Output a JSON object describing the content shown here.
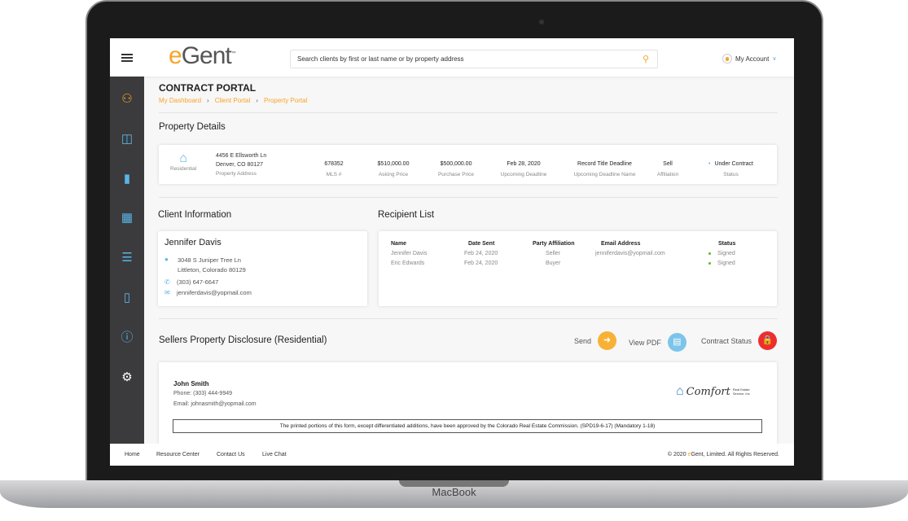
{
  "device": {
    "label": "MacBook"
  },
  "header": {
    "logo_e": "e",
    "logo_rest": "Gent",
    "logo_tm": "™",
    "search_placeholder": "Search clients by first or last name or by property address",
    "account_label": "My Account"
  },
  "sidebar": {
    "items": [
      {
        "icon": "people-icon"
      },
      {
        "icon": "chat-icon"
      },
      {
        "icon": "bar-chart-icon"
      },
      {
        "icon": "calendar-icon"
      },
      {
        "icon": "list-icon"
      },
      {
        "icon": "trash-icon"
      },
      {
        "icon": "help-icon"
      },
      {
        "icon": "gear-icon"
      }
    ]
  },
  "page": {
    "title": "CONTRACT PORTAL",
    "breadcrumb": [
      "My Dashboard",
      "Client Portal",
      "Property Portal"
    ]
  },
  "property": {
    "heading": "Property Details",
    "type": "Residential",
    "address1": "4456 E Ellsworth Ln",
    "address2": "Denver, CO 80127",
    "address_label": "Property Address",
    "fields": [
      {
        "value": "678352",
        "label": "MLS #"
      },
      {
        "value": "$510,000.00",
        "label": "Asking Price"
      },
      {
        "value": "$500,000.00",
        "label": "Purchase Price"
      },
      {
        "value": "Feb 28, 2020",
        "label": "Upcoming Deadline"
      },
      {
        "value": "Record Title Deadline",
        "label": "Upcoming Deadline Name"
      },
      {
        "value": "Sell",
        "label": "Affiliation"
      },
      {
        "value": "Under Contract",
        "label": "Status"
      }
    ]
  },
  "client": {
    "heading": "Client Information",
    "name": "Jennifer Davis",
    "street": "3048 S Juniper Tree Ln",
    "city": "Littleton, Colorado 80129",
    "phone": "(303) 647-6647",
    "email": "jenniferdavis@yopmail.com"
  },
  "recipients": {
    "heading": "Recipient List",
    "columns": [
      "Name",
      "Date Sent",
      "Party Affiliation",
      "Email Address",
      "Status"
    ],
    "rows": [
      [
        "Jennifer Davis",
        "Feb 24, 2020",
        "Seller",
        "jenniferdavis@yopmail.com",
        "Signed"
      ],
      [
        "Eric Edwards",
        "Feb 24, 2020",
        "Buyer",
        "",
        "Signed"
      ]
    ]
  },
  "disclosure": {
    "heading": "Sellers Property Disclosure (Residential)",
    "send": "Send",
    "view_pdf": "View PDF",
    "contract_status": "Contract Status",
    "agent_name": "John Smith",
    "agent_phone": "Phone: (303) 444-9949",
    "agent_email": "Email: johnasmith@yopmail.com",
    "brand": "Comfort",
    "brand_sub": "Real Estate Service, Inc",
    "notice": "The printed portions of this form, except differentiated additions, have been approved by the Colorado Real Estate Commission.   (SPD19-6-17) (Mandatory 1-18)"
  },
  "footer": {
    "links": [
      "Home",
      "Resource Center",
      "Contact Us",
      "Live Chat"
    ],
    "copyright_pre": "© 2020 ",
    "copyright_e": "e",
    "copyright_post": "Gent, Limited.  All Rights Reserved."
  },
  "colors": {
    "accent": "#f7a42a",
    "blue": "#5ab4e6",
    "red": "#ee2e2e",
    "green": "#5cb82e",
    "sidebar": "#3b3b3d"
  }
}
